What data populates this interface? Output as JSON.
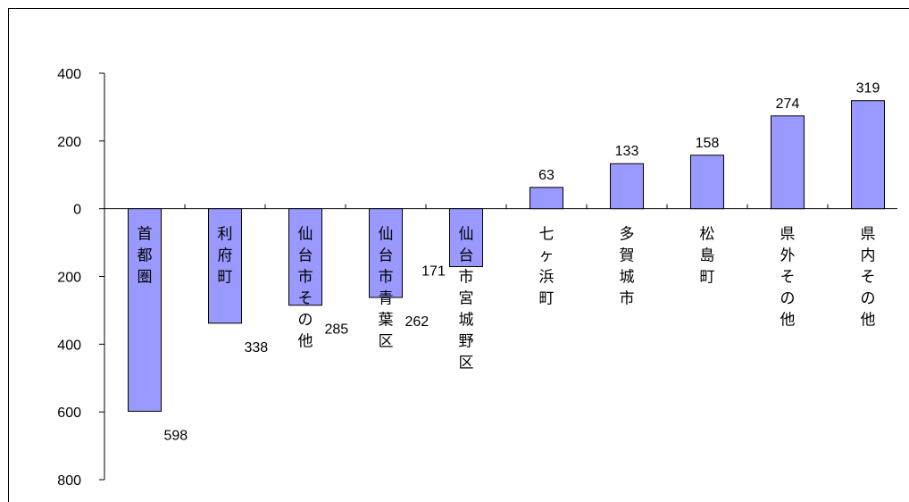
{
  "chart_data": {
    "type": "bar",
    "categories": [
      "首都圏",
      "利府町",
      "仙台市その他",
      "仙台市青葉区",
      "仙台市宮城野区",
      "七ヶ浜町",
      "多賀城市",
      "松島町",
      "県外その他",
      "県内その他"
    ],
    "values": [
      -598,
      -338,
      -285,
      -262,
      -171,
      63,
      133,
      158,
      274,
      319
    ],
    "value_labels": [
      "598",
      "338",
      "285",
      "262",
      "171",
      "63",
      "133",
      "158",
      "274",
      "319"
    ],
    "y_tick_labels": [
      "400",
      "200",
      "0",
      "200",
      "400",
      "600",
      "800"
    ],
    "y_tick_values": [
      400,
      200,
      0,
      -200,
      -400,
      -600,
      -800
    ],
    "ylim": [
      -800,
      400
    ],
    "title": "",
    "xlabel": "",
    "ylabel": "",
    "grid": false,
    "legend": "none",
    "colors": {
      "bar_fill": "#9999FF",
      "bar_stroke": "#000000",
      "axis": "#000000"
    }
  }
}
